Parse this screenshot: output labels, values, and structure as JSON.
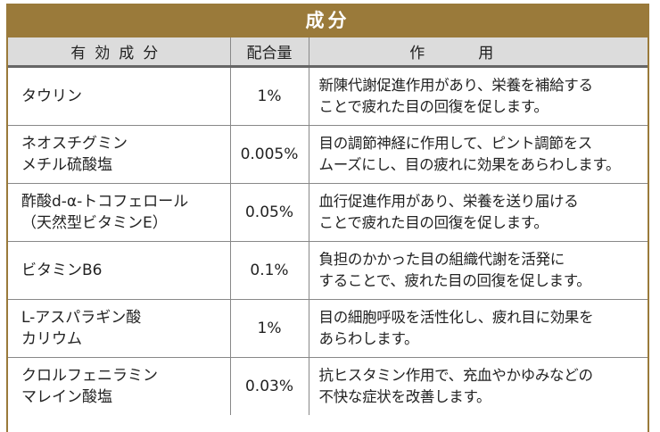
{
  "title": "成分",
  "colors": {
    "title_band": "#9a7a3a",
    "header_bg": "#dcdcdc",
    "grid": "#888888"
  },
  "headers": {
    "ingredient": "有効成分",
    "amount": "配合量",
    "effect": "作用"
  },
  "rows": [
    {
      "name": [
        "タウリン"
      ],
      "amount": "1%",
      "effect": [
        "新陳代謝促進作用があり、栄養を補給する",
        "ことで疲れた目の回復を促します。"
      ]
    },
    {
      "name": [
        "ネオスチグミン",
        "メチル硫酸塩"
      ],
      "amount": "0.005%",
      "effect": [
        "目の調節神経に作用して、ピント調節をス",
        "ムーズにし、目の疲れに効果をあらわします。"
      ]
    },
    {
      "name": [
        "酢酸d-α-トコフェロール",
        "（天然型ビタミンE）"
      ],
      "amount": "0.05%",
      "effect": [
        "血行促進作用があり、栄養を送り届ける",
        "ことで疲れた目の回復を促します。"
      ]
    },
    {
      "name": [
        "ビタミンB6"
      ],
      "amount": "0.1%",
      "effect": [
        "負担のかかった目の組織代謝を活発に",
        "することで、疲れた目の回復を促します。"
      ]
    },
    {
      "name": [
        "L-アスパラギン酸",
        "カリウム"
      ],
      "amount": "1%",
      "effect": [
        "目の細胞呼吸を活性化し、疲れ目に効果を",
        "あらわします。"
      ]
    },
    {
      "name": [
        "クロルフェニラミン",
        "マレイン酸塩"
      ],
      "amount": "0.03%",
      "effect": [
        "抗ヒスタミン作用で、充血やかゆみなどの",
        "不快な症状を改善します。"
      ]
    }
  ]
}
